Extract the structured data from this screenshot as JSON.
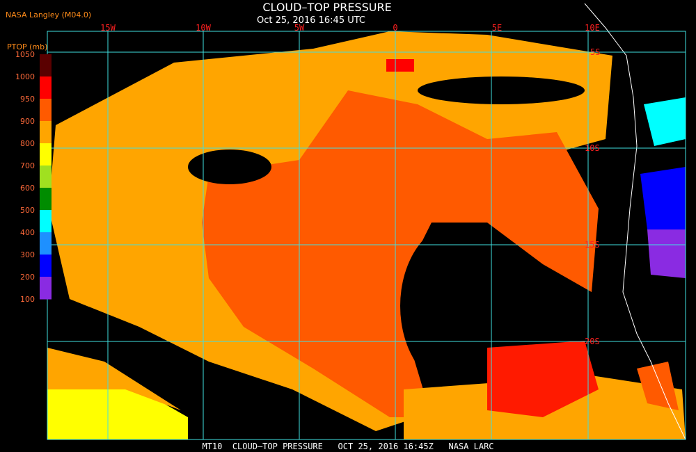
{
  "header": {
    "title": "CLOUD–TOP PRESSURE",
    "subtitle": "Oct 25, 2016 16:45 UTC",
    "source": "NASA Langley (M04.0)"
  },
  "colorbar": {
    "label": "PTOP (mb)",
    "ticks": [
      1050,
      1000,
      950,
      900,
      800,
      700,
      600,
      500,
      400,
      300,
      200,
      100
    ],
    "colors": [
      "#5a0000",
      "#ff0000",
      "#ff5a00",
      "#ffa500",
      "#ffff00",
      "#a0e020",
      "#008c00",
      "#00ffff",
      "#1e90ff",
      "#0000ff",
      "#8a2be2"
    ]
  },
  "longitude_labels": [
    "15W",
    "10W",
    "5W",
    "0",
    "5E",
    "10E"
  ],
  "latitude_labels": [
    "5S",
    "10S",
    "15S",
    "20S"
  ],
  "footer": "MT10  CLOUD–TOP PRESSURE   OCT 25, 2016 16:45Z   NASA LARC"
}
